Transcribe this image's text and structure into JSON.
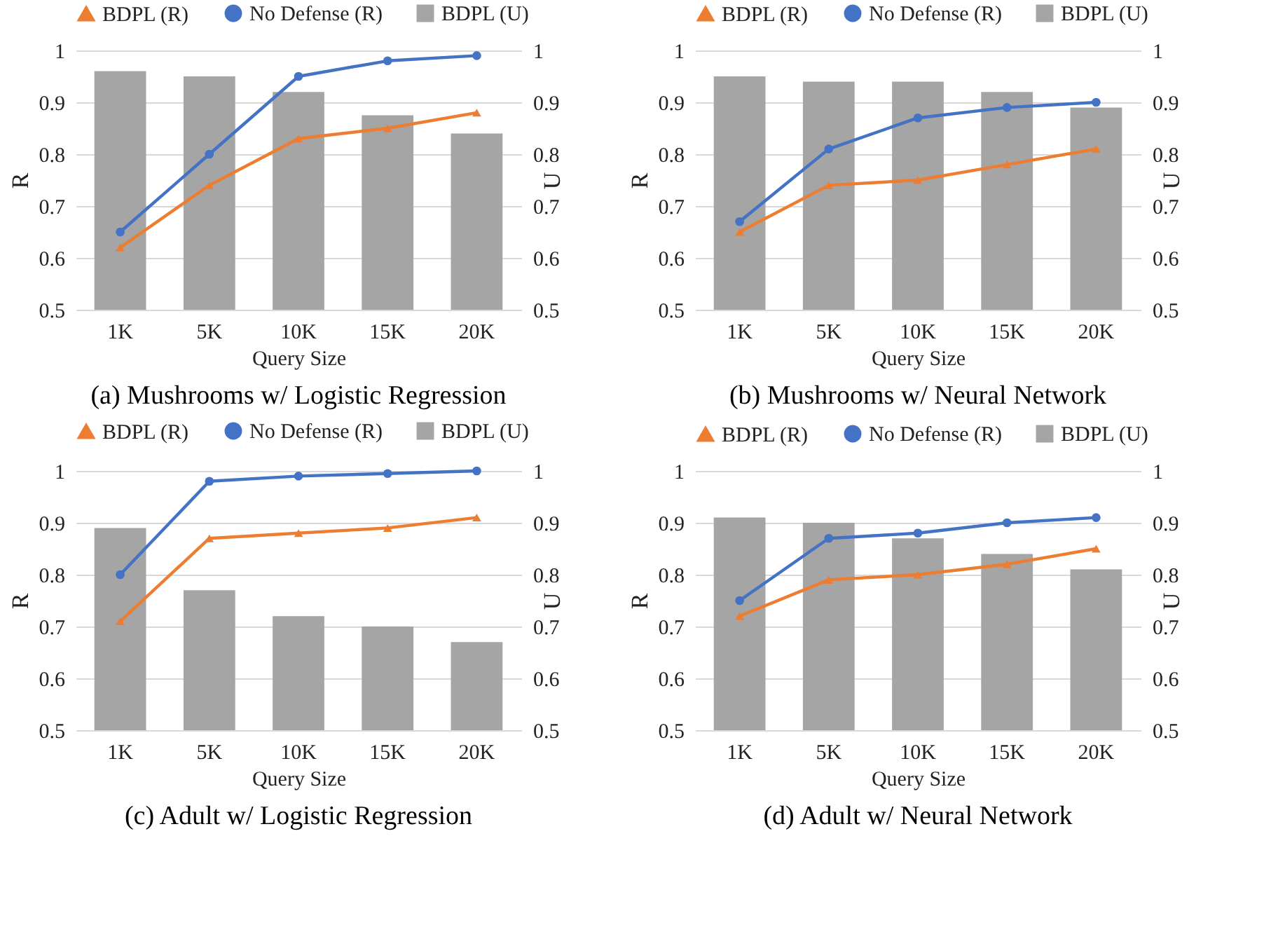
{
  "chart_data": [
    {
      "type": "line",
      "title": "(a) Mushrooms w/ Logistic Regression",
      "xlabel": "Query Size",
      "ylabel": "R",
      "y2label": "U",
      "categories": [
        "1K",
        "5K",
        "10K",
        "15K",
        "20K"
      ],
      "ylim": [
        0.5,
        1
      ],
      "yticks": [
        0.5,
        0.6,
        0.7,
        0.8,
        0.9,
        1
      ],
      "y2lim": [
        0.5,
        1
      ],
      "y2ticks": [
        0.5,
        0.6,
        0.7,
        0.8,
        0.9,
        1
      ],
      "grid": "y",
      "legend": "top",
      "series": [
        {
          "name": "BDPL (R)",
          "marker": "triangle",
          "color": "#ed7d31",
          "values": [
            0.62,
            0.74,
            0.83,
            0.85,
            0.88
          ]
        },
        {
          "name": "No Defense (R)",
          "marker": "circle",
          "color": "#4472c4",
          "values": [
            0.65,
            0.8,
            0.95,
            0.98,
            0.99
          ]
        },
        {
          "name": "BDPL (U)",
          "type": "bar",
          "axis": "y2",
          "color": "#a5a5a5",
          "values": [
            0.96,
            0.95,
            0.92,
            0.875,
            0.84
          ]
        }
      ]
    },
    {
      "type": "line",
      "title": "(b) Mushrooms w/ Neural Network",
      "xlabel": "Query Size",
      "ylabel": "R",
      "y2label": "U",
      "categories": [
        "1K",
        "5K",
        "10K",
        "15K",
        "20K"
      ],
      "ylim": [
        0.5,
        1
      ],
      "yticks": [
        0.5,
        0.6,
        0.7,
        0.8,
        0.9,
        1
      ],
      "y2lim": [
        0.5,
        1
      ],
      "y2ticks": [
        0.5,
        0.6,
        0.7,
        0.8,
        0.9,
        1
      ],
      "grid": "y",
      "legend": "top",
      "series": [
        {
          "name": "BDPL (R)",
          "marker": "triangle",
          "color": "#ed7d31",
          "values": [
            0.65,
            0.74,
            0.75,
            0.78,
            0.81
          ]
        },
        {
          "name": "No Defense (R)",
          "marker": "circle",
          "color": "#4472c4",
          "values": [
            0.67,
            0.81,
            0.87,
            0.89,
            0.9
          ]
        },
        {
          "name": "BDPL (U)",
          "type": "bar",
          "axis": "y2",
          "color": "#a5a5a5",
          "values": [
            0.95,
            0.94,
            0.94,
            0.92,
            0.89
          ]
        }
      ]
    },
    {
      "type": "line",
      "title": "(c) Adult w/ Logistic Regression",
      "xlabel": "Query Size",
      "ylabel": "R",
      "y2label": "U",
      "categories": [
        "1K",
        "5K",
        "10K",
        "15K",
        "20K"
      ],
      "ylim": [
        0.5,
        1
      ],
      "yticks": [
        0.5,
        0.6,
        0.7,
        0.8,
        0.9,
        1
      ],
      "y2lim": [
        0.5,
        1
      ],
      "y2ticks": [
        0.5,
        0.6,
        0.7,
        0.8,
        0.9,
        1
      ],
      "grid": "y",
      "legend": "top",
      "series": [
        {
          "name": "BDPL (R)",
          "marker": "triangle",
          "color": "#ed7d31",
          "values": [
            0.71,
            0.87,
            0.88,
            0.89,
            0.91
          ]
        },
        {
          "name": "No Defense (R)",
          "marker": "circle",
          "color": "#4472c4",
          "values": [
            0.8,
            0.98,
            0.99,
            0.995,
            1.0
          ]
        },
        {
          "name": "BDPL (U)",
          "type": "bar",
          "axis": "y2",
          "color": "#a5a5a5",
          "values": [
            0.89,
            0.77,
            0.72,
            0.7,
            0.67
          ]
        }
      ]
    },
    {
      "type": "line",
      "title": "(d) Adult w/ Neural Network",
      "xlabel": "Query Size",
      "ylabel": "R",
      "y2label": "U",
      "categories": [
        "1K",
        "5K",
        "10K",
        "15K",
        "20K"
      ],
      "ylim": [
        0.5,
        1
      ],
      "yticks": [
        0.5,
        0.6,
        0.7,
        0.8,
        0.9,
        1
      ],
      "y2lim": [
        0.5,
        1
      ],
      "y2ticks": [
        0.5,
        0.6,
        0.7,
        0.8,
        0.9,
        1
      ],
      "grid": "y",
      "legend": "top",
      "series": [
        {
          "name": "BDPL (R)",
          "marker": "triangle",
          "color": "#ed7d31",
          "values": [
            0.72,
            0.79,
            0.8,
            0.82,
            0.85
          ]
        },
        {
          "name": "No Defense (R)",
          "marker": "circle",
          "color": "#4472c4",
          "values": [
            0.75,
            0.87,
            0.88,
            0.9,
            0.91
          ]
        },
        {
          "name": "BDPL (U)",
          "type": "bar",
          "axis": "y2",
          "color": "#a5a5a5",
          "values": [
            0.91,
            0.9,
            0.87,
            0.84,
            0.81
          ]
        }
      ]
    }
  ]
}
